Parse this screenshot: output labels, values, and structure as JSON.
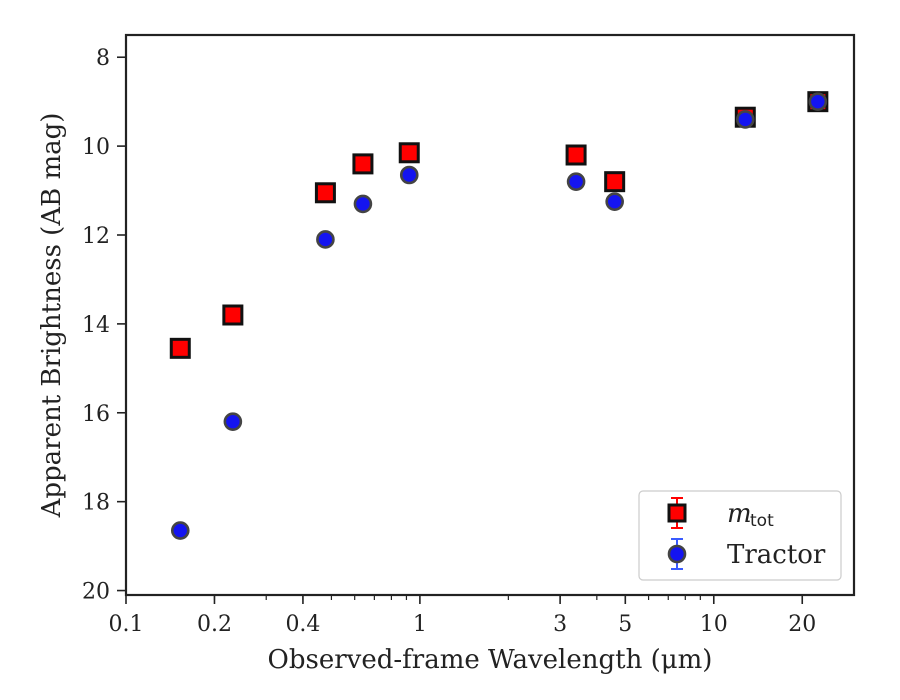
{
  "chart_data": {
    "type": "scatter",
    "title": "",
    "xlabel": "Observed-frame Wavelength (μm)",
    "ylabel": "Apparent Brightness (AB mag)",
    "xscale": "log",
    "xlim": [
      0.1,
      30
    ],
    "ylim": [
      20.1,
      7.5
    ],
    "y_inverted": true,
    "x_ticks": [
      0.1,
      0.2,
      0.4,
      1,
      3,
      5,
      10,
      20
    ],
    "x_tick_labels": [
      "0.1",
      "0.2",
      "0.4",
      "1",
      "3",
      "5",
      "10",
      "20"
    ],
    "y_ticks": [
      8,
      10,
      12,
      14,
      16,
      18,
      20
    ],
    "y_tick_labels": [
      "8",
      "10",
      "12",
      "14",
      "16",
      "18",
      "20"
    ],
    "grid": false,
    "legend_position": "lower-right",
    "series": [
      {
        "name": "m_tot",
        "legend_label": {
          "main": "m",
          "sub": "tot"
        },
        "marker": "square",
        "color": "#ff0000",
        "edge_color": "#111111",
        "points": [
          {
            "x": 0.153,
            "y": 14.55
          },
          {
            "x": 0.231,
            "y": 13.8
          },
          {
            "x": 0.477,
            "y": 11.05
          },
          {
            "x": 0.64,
            "y": 10.4
          },
          {
            "x": 0.92,
            "y": 10.15
          },
          {
            "x": 3.4,
            "y": 10.2
          },
          {
            "x": 4.6,
            "y": 10.8
          },
          {
            "x": 12.8,
            "y": 9.35
          },
          {
            "x": 22.6,
            "y": 9.0
          }
        ]
      },
      {
        "name": "Tractor",
        "legend_label": {
          "main": "Tractor",
          "sub": ""
        },
        "marker": "circle",
        "color": "#1414f0",
        "edge_color": "#444444",
        "points": [
          {
            "x": 0.153,
            "y": 18.65
          },
          {
            "x": 0.231,
            "y": 16.2
          },
          {
            "x": 0.477,
            "y": 12.1
          },
          {
            "x": 0.64,
            "y": 11.3
          },
          {
            "x": 0.92,
            "y": 10.65
          },
          {
            "x": 3.4,
            "y": 10.8
          },
          {
            "x": 4.6,
            "y": 11.25
          },
          {
            "x": 12.8,
            "y": 9.4
          },
          {
            "x": 22.6,
            "y": 9.0
          }
        ]
      }
    ]
  }
}
